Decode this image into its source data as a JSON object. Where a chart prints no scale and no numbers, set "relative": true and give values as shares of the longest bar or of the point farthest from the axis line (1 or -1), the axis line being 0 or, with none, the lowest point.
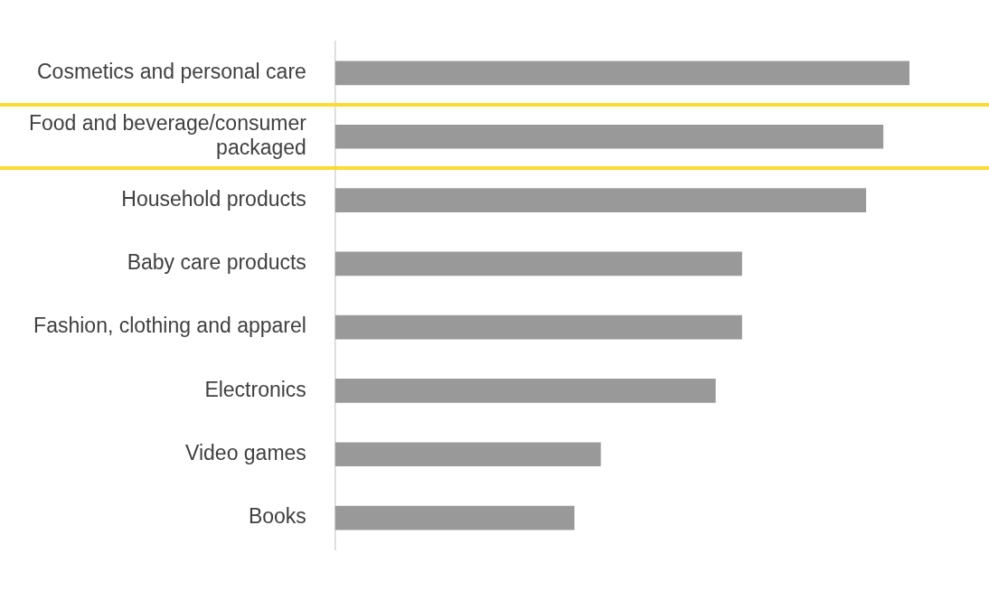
{
  "chart_data": {
    "type": "bar",
    "orientation": "horizontal",
    "relative": true,
    "categories": [
      "Cosmetics and personal care",
      "Food and beverage/consumer packaged",
      "Household products",
      "Baby care products",
      "Fashion, clothing and apparel",
      "Electronics",
      "Video games",
      "Books"
    ],
    "values": [
      1,
      0.954,
      0.924,
      0.708,
      0.708,
      0.662,
      0.462,
      0.416
    ],
    "color": "#999999",
    "legend": false
  }
}
